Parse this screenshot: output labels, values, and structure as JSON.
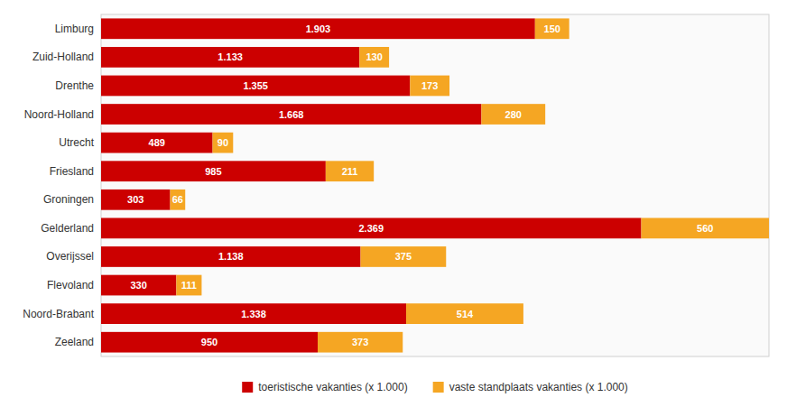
{
  "chart_data": {
    "type": "bar",
    "orientation": "horizontal",
    "stacked": true,
    "data_labels": true,
    "categories": [
      "Limburg",
      "Zuid-Holland",
      "Drenthe",
      "Noord-Holland",
      "Utrecht",
      "Friesland",
      "Groningen",
      "Gelderland",
      "Overijssel",
      "Flevoland",
      "Noord-Brabant",
      "Zeeland"
    ],
    "series": [
      {
        "name": "toeristische vakanties (x 1.000)",
        "color": "#CC0000",
        "values": [
          1903,
          1133,
          1355,
          1668,
          489,
          985,
          303,
          2369,
          1138,
          330,
          1338,
          950
        ],
        "value_labels": [
          "1.903",
          "1.133",
          "1.355",
          "1.668",
          "489",
          "985",
          "303",
          "2.369",
          "1.138",
          "330",
          "1.338",
          "950"
        ]
      },
      {
        "name": "vaste standplaats vakanties (x 1.000)",
        "color": "#F5A623",
        "values": [
          150,
          130,
          173,
          280,
          90,
          211,
          66,
          560,
          375,
          111,
          514,
          373
        ]
      }
    ],
    "xlim": [
      0,
      2929
    ],
    "tick_labels": "y",
    "grid": false,
    "legend": "bottom"
  }
}
